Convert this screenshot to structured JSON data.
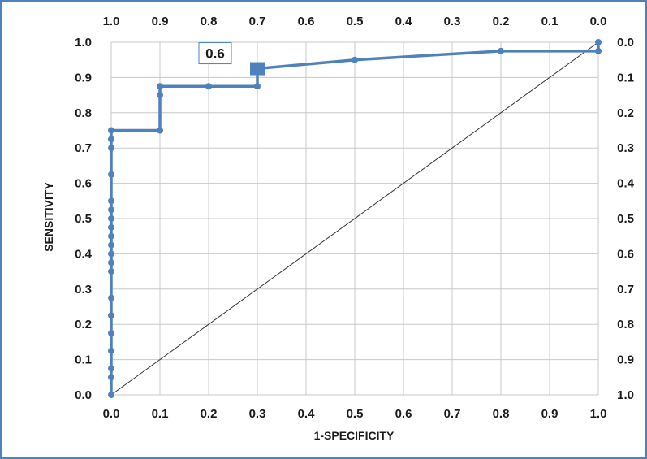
{
  "chart_data": {
    "type": "line",
    "xlabel": "1-SPECIFICITY",
    "ylabel": "SENSITIVITY",
    "xlim": [
      0,
      1
    ],
    "ylim": [
      0,
      1
    ],
    "x_ticks": [
      "0.0",
      "0.1",
      "0.2",
      "0.3",
      "0.4",
      "0.5",
      "0.6",
      "0.7",
      "0.8",
      "0.9",
      "1.0"
    ],
    "y_ticks": [
      "0.0",
      "0.1",
      "0.2",
      "0.3",
      "0.4",
      "0.5",
      "0.6",
      "0.7",
      "0.8",
      "0.9",
      "1.0"
    ],
    "top_ticks": [
      "1.0",
      "0.9",
      "0.8",
      "0.7",
      "0.6",
      "0.5",
      "0.4",
      "0.3",
      "0.2",
      "0.1",
      "0.0"
    ],
    "right_ticks": [
      "1.0",
      "0.9",
      "0.8",
      "0.7",
      "0.6",
      "0.5",
      "0.4",
      "0.3",
      "0.2",
      "0.1",
      "0.0"
    ],
    "grid": true,
    "series": [
      {
        "color": "#4f81bd",
        "points": [
          [
            0,
            0
          ],
          [
            0,
            0.05
          ],
          [
            0,
            0.075
          ],
          [
            0,
            0.125
          ],
          [
            0,
            0.175
          ],
          [
            0,
            0.225
          ],
          [
            0,
            0.275
          ],
          [
            0,
            0.35
          ],
          [
            0,
            0.375
          ],
          [
            0,
            0.4
          ],
          [
            0,
            0.425
          ],
          [
            0,
            0.45
          ],
          [
            0,
            0.475
          ],
          [
            0,
            0.5
          ],
          [
            0,
            0.525
          ],
          [
            0,
            0.55
          ],
          [
            0,
            0.625
          ],
          [
            0,
            0.7
          ],
          [
            0,
            0.725
          ],
          [
            0,
            0.75
          ],
          [
            0.1,
            0.75
          ],
          [
            0.1,
            0.85
          ],
          [
            0.1,
            0.875
          ],
          [
            0.2,
            0.875
          ],
          [
            0.3,
            0.875
          ],
          [
            0.3,
            0.925
          ],
          [
            0.5,
            0.95
          ],
          [
            0.8,
            0.975
          ],
          [
            1.0,
            0.975
          ],
          [
            1.0,
            1.0
          ]
        ]
      }
    ],
    "reference_line": [
      [
        0,
        0
      ],
      [
        1,
        1
      ]
    ],
    "annotation": {
      "text": "0.6",
      "x": 0.3,
      "y": 0.925
    }
  }
}
